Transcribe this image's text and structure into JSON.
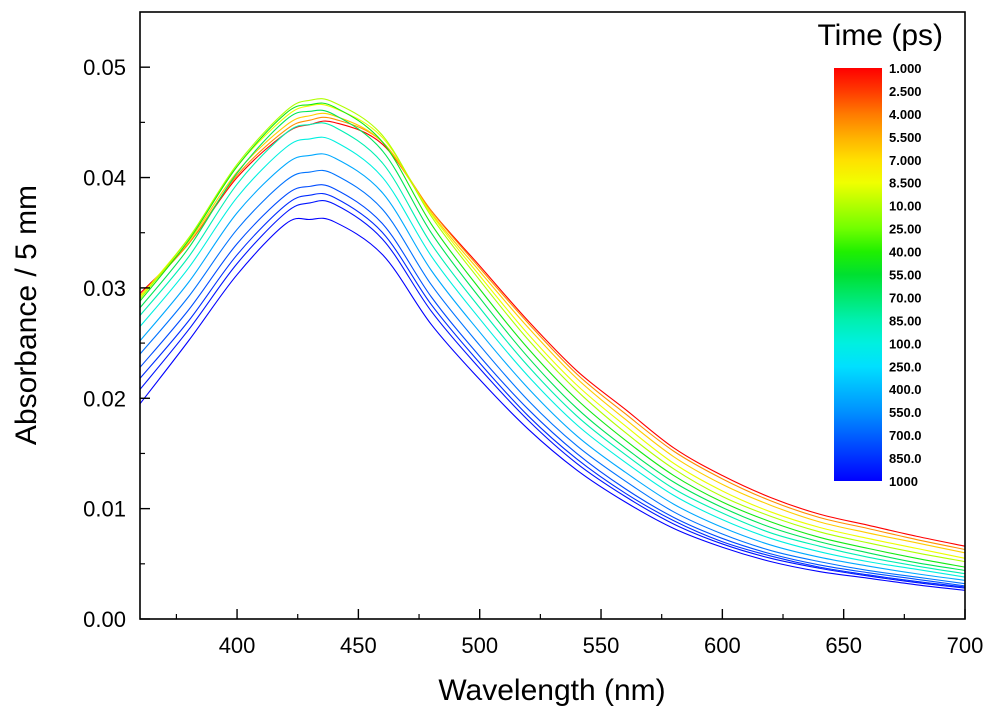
{
  "chart_data": {
    "type": "line",
    "title": "",
    "xlabel": "Wavelength (nm)",
    "ylabel": "Absorbance / 5 mm",
    "xlim": [
      360,
      700
    ],
    "ylim": [
      0.0,
      0.055
    ],
    "x_ticks": [
      400,
      450,
      500,
      550,
      600,
      650,
      700
    ],
    "x_tick_labels": [
      "400",
      "450",
      "500",
      "550",
      "600",
      "650",
      "700"
    ],
    "y_ticks": [
      0.0,
      0.01,
      0.02,
      0.03,
      0.04,
      0.05
    ],
    "y_tick_labels": [
      "0.00",
      "0.01",
      "0.02",
      "0.03",
      "0.04",
      "0.05"
    ],
    "grid": false,
    "legend": {
      "title": "Time (ps)",
      "placement": "top-right",
      "type": "colorbar",
      "labels": [
        "1.000",
        "2.500",
        "4.000",
        "5.500",
        "7.000",
        "8.500",
        "10.00",
        "25.00",
        "40.00",
        "55.00",
        "70.00",
        "85.00",
        "100.0",
        "250.0",
        "400.0",
        "550.0",
        "700.0",
        "850.0",
        "1000"
      ],
      "colors": [
        "#ff0000",
        "#ff3a00",
        "#ff7a00",
        "#ffb000",
        "#ffe000",
        "#f0ff00",
        "#b0ff00",
        "#70ff00",
        "#20f000",
        "#00e030",
        "#00e870",
        "#00f0b0",
        "#00f0e0",
        "#00e0ff",
        "#00b8ff",
        "#0090ff",
        "#0060ff",
        "#0030ff",
        "#0000ff"
      ]
    },
    "x": [
      360,
      380,
      400,
      420,
      430,
      440,
      460,
      480,
      500,
      520,
      540,
      560,
      580,
      600,
      620,
      640,
      660,
      680,
      700
    ],
    "series": [
      {
        "time_ps": 1.0,
        "values": [
          0.0295,
          0.034,
          0.04,
          0.044,
          0.0448,
          0.045,
          0.043,
          0.037,
          0.032,
          0.027,
          0.0225,
          0.019,
          0.0155,
          0.013,
          0.011,
          0.0095,
          0.0085,
          0.0075,
          0.0066
        ]
      },
      {
        "time_ps": 2.5,
        "values": [
          0.0293,
          0.034,
          0.0402,
          0.0443,
          0.0452,
          0.0453,
          0.0432,
          0.037,
          0.0318,
          0.0268,
          0.0222,
          0.0186,
          0.0152,
          0.0127,
          0.0107,
          0.0092,
          0.0082,
          0.0072,
          0.0063
        ]
      },
      {
        "time_ps": 4.0,
        "values": [
          0.0292,
          0.0342,
          0.0405,
          0.0447,
          0.0456,
          0.0456,
          0.0432,
          0.0368,
          0.0315,
          0.0264,
          0.0218,
          0.0181,
          0.0147,
          0.0122,
          0.0103,
          0.0088,
          0.0078,
          0.0069,
          0.006
        ]
      },
      {
        "time_ps": 7.0,
        "values": [
          0.0292,
          0.0345,
          0.041,
          0.0455,
          0.0465,
          0.0463,
          0.0436,
          0.0367,
          0.0311,
          0.0258,
          0.0212,
          0.0175,
          0.0141,
          0.0116,
          0.0097,
          0.0083,
          0.0073,
          0.0064,
          0.0055
        ]
      },
      {
        "time_ps": 10.0,
        "values": [
          0.029,
          0.0345,
          0.0412,
          0.046,
          0.047,
          0.0468,
          0.0438,
          0.0365,
          0.0307,
          0.0253,
          0.0207,
          0.0169,
          0.0136,
          0.0111,
          0.0093,
          0.0079,
          0.0069,
          0.006,
          0.0052
        ]
      },
      {
        "time_ps": 25.0,
        "values": [
          0.0288,
          0.0343,
          0.041,
          0.0458,
          0.0466,
          0.0464,
          0.0432,
          0.0358,
          0.0299,
          0.0245,
          0.0199,
          0.0162,
          0.013,
          0.0106,
          0.0088,
          0.0074,
          0.0064,
          0.0055,
          0.0047
        ]
      },
      {
        "time_ps": 40.0,
        "values": [
          0.0282,
          0.0336,
          0.0404,
          0.0452,
          0.046,
          0.0457,
          0.0424,
          0.035,
          0.0291,
          0.0237,
          0.0191,
          0.0155,
          0.0124,
          0.0101,
          0.0083,
          0.007,
          0.006,
          0.0051,
          0.0044
        ]
      },
      {
        "time_ps": 70.0,
        "values": [
          0.0275,
          0.0328,
          0.0394,
          0.044,
          0.0448,
          0.0446,
          0.0413,
          0.034,
          0.0282,
          0.0229,
          0.0184,
          0.0149,
          0.0118,
          0.0096,
          0.0078,
          0.0066,
          0.0056,
          0.0048,
          0.0041
        ]
      },
      {
        "time_ps": 100.0,
        "values": [
          0.0265,
          0.0318,
          0.0382,
          0.0427,
          0.0435,
          0.0433,
          0.04,
          0.0329,
          0.0272,
          0.022,
          0.0176,
          0.0142,
          0.0112,
          0.009,
          0.0073,
          0.0061,
          0.0052,
          0.0045,
          0.0038
        ]
      },
      {
        "time_ps": 250.0,
        "values": [
          0.0252,
          0.0305,
          0.0368,
          0.0412,
          0.042,
          0.0418,
          0.0386,
          0.0316,
          0.026,
          0.0209,
          0.0166,
          0.0133,
          0.0104,
          0.0083,
          0.0067,
          0.0056,
          0.0048,
          0.0041,
          0.0035
        ]
      },
      {
        "time_ps": 400.0,
        "values": [
          0.024,
          0.0292,
          0.0353,
          0.0397,
          0.0405,
          0.0403,
          0.0371,
          0.0303,
          0.0248,
          0.0198,
          0.0157,
          0.0125,
          0.0097,
          0.0077,
          0.0062,
          0.0052,
          0.0044,
          0.0038,
          0.0032
        ]
      },
      {
        "time_ps": 550.0,
        "values": [
          0.0228,
          0.028,
          0.034,
          0.0384,
          0.0392,
          0.039,
          0.0358,
          0.0292,
          0.0238,
          0.019,
          0.015,
          0.0118,
          0.0092,
          0.0073,
          0.0059,
          0.0049,
          0.0042,
          0.0036,
          0.003
        ]
      },
      {
        "time_ps": 700.0,
        "values": [
          0.0218,
          0.027,
          0.033,
          0.0375,
          0.0384,
          0.0382,
          0.035,
          0.0285,
          0.0232,
          0.0184,
          0.0145,
          0.0114,
          0.0089,
          0.007,
          0.0057,
          0.0047,
          0.004,
          0.0034,
          0.0029
        ]
      },
      {
        "time_ps": 850.0,
        "values": [
          0.0208,
          0.0262,
          0.0322,
          0.0368,
          0.0377,
          0.0376,
          0.0344,
          0.0279,
          0.0227,
          0.018,
          0.0141,
          0.0111,
          0.0086,
          0.0068,
          0.0055,
          0.0046,
          0.0039,
          0.0033,
          0.0028
        ]
      },
      {
        "time_ps": 1000.0,
        "values": [
          0.0195,
          0.0252,
          0.0312,
          0.0358,
          0.0362,
          0.036,
          0.033,
          0.0267,
          0.0217,
          0.0172,
          0.0135,
          0.0106,
          0.0082,
          0.0065,
          0.0052,
          0.0043,
          0.0037,
          0.0031,
          0.0026
        ]
      }
    ]
  }
}
